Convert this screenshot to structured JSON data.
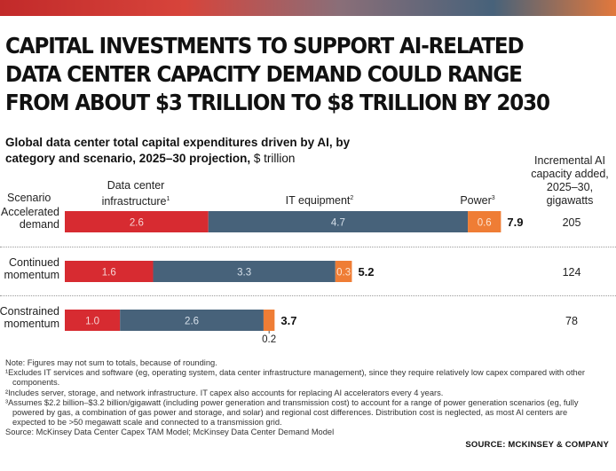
{
  "headline": "CAPITAL INVESTMENTS TO SUPPORT AI-RELATED DATA CENTER CAPACITY DEMAND COULD RANGE FROM ABOUT $3 TRILLION TO $8 TRILLION BY 2030",
  "subtitle": {
    "bold": "Global data center total capital expenditures driven by AI, by category and scenario, 2025–30 projection,",
    "unit": " $ trillion"
  },
  "headers": {
    "scenario": "Scenario",
    "infra_line1": "Data center",
    "infra_line2": "infrastructure",
    "infra_sup": "1",
    "it": "IT equipment",
    "it_sup": "2",
    "power": "Power",
    "power_sup": "3",
    "capacity_line1": "Incremental AI",
    "capacity_line2": "capacity added,",
    "capacity_line3": "2025–30,",
    "capacity_line4": "gigawatts"
  },
  "colors": {
    "infrastructure": "#d72b31",
    "it_equipment": "#47627a",
    "power": "#ef7d35"
  },
  "chart_data": {
    "type": "bar",
    "orientation": "horizontal",
    "stacked": true,
    "categories": [
      "Accelerated demand",
      "Continued momentum",
      "Constrained momentum"
    ],
    "category_lines": [
      [
        "Accelerated",
        "demand"
      ],
      [
        "Continued",
        "momentum"
      ],
      [
        "Constrained",
        "momentum"
      ]
    ],
    "series": [
      {
        "name": "Data center infrastructure",
        "values": [
          2.6,
          1.6,
          1.0
        ],
        "labels": [
          "2.6",
          "1.6",
          "1.0"
        ]
      },
      {
        "name": "IT equipment",
        "values": [
          4.7,
          3.3,
          2.6
        ],
        "labels": [
          "4.7",
          "3.3",
          "2.6"
        ]
      },
      {
        "name": "Power",
        "values": [
          0.6,
          0.3,
          0.2
        ],
        "labels": [
          "0.6",
          "0.3",
          "0.2"
        ]
      }
    ],
    "totals": [
      "7.9",
      "5.2",
      "3.7"
    ],
    "capacity_gw": [
      "205",
      "124",
      "78"
    ],
    "unit": "$ trillion"
  },
  "notes": [
    "Note: Figures may not sum to totals, because of rounding.",
    "¹Excludes IT services and software (eg, operating system, data center infrastructure management), since they require relatively low capex compared with other",
    "components.",
    "²Includes server, storage, and network infrastructure. IT capex also accounts for replacing AI accelerators every 4 years.",
    "³Assumes $2.2 billion–$3.2 billion/gigawatt (including power generation and transmission cost) to account for a range of power generation scenarios (eg, fully",
    "powered by gas, a combination of gas power and storage, and solar) and regional cost differences. Distribution cost is neglected, as most AI centers are",
    "expected to be >50 megawatt scale and connected to a transmission grid.",
    "Source: McKinsey Data Center Capex TAM Model; McKinsey Data Center Demand Model"
  ],
  "source_credit": "SOURCE: MCKINSEY & COMPANY"
}
